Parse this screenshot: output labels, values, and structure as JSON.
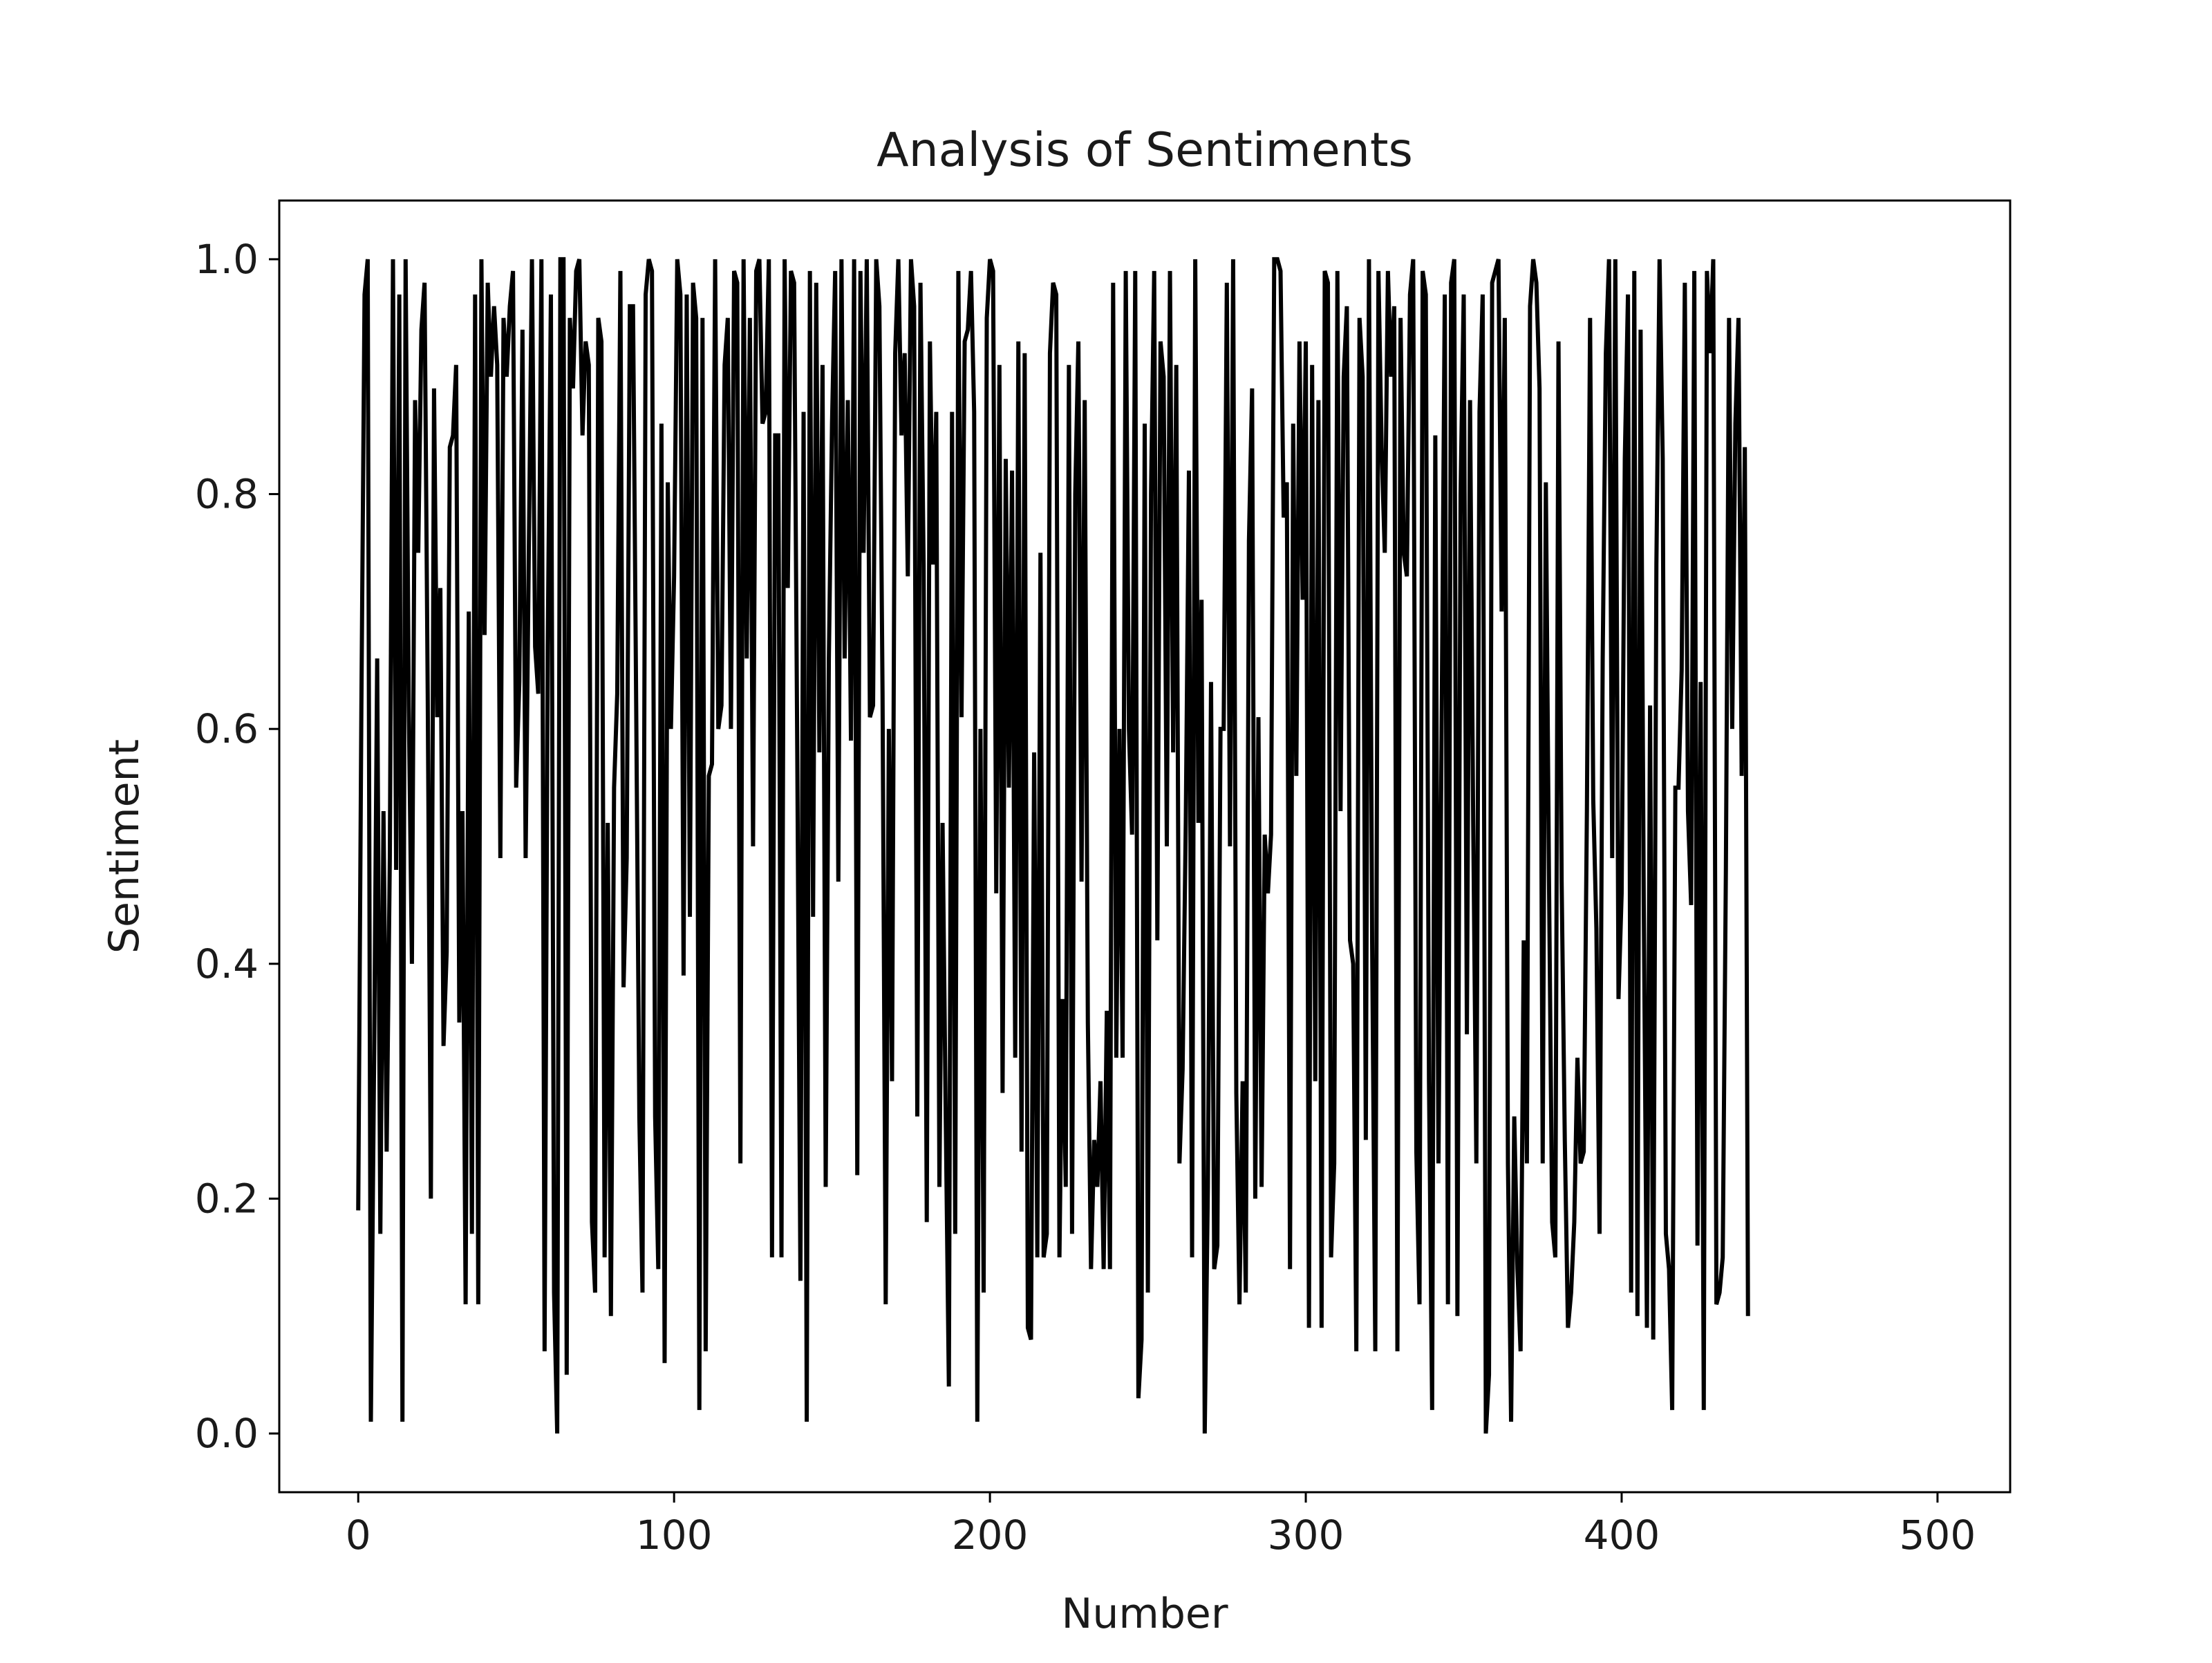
{
  "chart_data": {
    "type": "line",
    "title": "Analysis of Sentiments",
    "xlabel": "Number",
    "ylabel": "Sentiment",
    "xlim": [
      -25,
      523
    ],
    "ylim": [
      -0.05,
      1.05
    ],
    "xticks": [
      0,
      100,
      200,
      300,
      400,
      500
    ],
    "xtick_labels": [
      "0",
      "100",
      "200",
      "300",
      "400",
      "500"
    ],
    "yticks": [
      0.0,
      0.2,
      0.4,
      0.6,
      0.8,
      1.0
    ],
    "ytick_labels": [
      "0.0",
      "0.2",
      "0.4",
      "0.6",
      "0.8",
      "1.0"
    ],
    "grid": false,
    "legend": "none",
    "line_color": "#000000",
    "series": [
      {
        "x_start": 0,
        "x_step": 1,
        "values": [
          0.19,
          0.62,
          0.97,
          1.0,
          0.01,
          0.31,
          0.66,
          0.17,
          0.53,
          0.24,
          0.49,
          1.0,
          0.48,
          0.97,
          0.01,
          1.0,
          0.62,
          0.4,
          0.88,
          0.75,
          0.94,
          0.98,
          0.63,
          0.2,
          0.89,
          0.61,
          0.72,
          0.33,
          0.41,
          0.84,
          0.85,
          0.91,
          0.35,
          0.53,
          0.11,
          0.7,
          0.17,
          0.97,
          0.11,
          1.0,
          0.68,
          0.98,
          0.9,
          0.96,
          0.91,
          0.49,
          0.95,
          0.9,
          0.96,
          0.99,
          0.55,
          0.64,
          0.94,
          0.49,
          0.75,
          1.0,
          0.67,
          0.63,
          1.0,
          0.07,
          0.67,
          0.97,
          0.12,
          0.0,
          1.0,
          1.0,
          0.05,
          0.95,
          0.89,
          0.99,
          1.0,
          0.85,
          0.93,
          0.91,
          0.18,
          0.12,
          0.95,
          0.93,
          0.15,
          0.52,
          0.1,
          0.55,
          0.63,
          0.99,
          0.38,
          0.49,
          0.96,
          0.96,
          0.62,
          0.27,
          0.12,
          0.97,
          1.0,
          0.99,
          0.27,
          0.14,
          0.86,
          0.06,
          0.81,
          0.6,
          0.73,
          1.0,
          0.97,
          0.39,
          0.97,
          0.44,
          0.98,
          0.95,
          0.02,
          0.95,
          0.07,
          0.56,
          0.57,
          1.0,
          0.6,
          0.62,
          0.91,
          0.95,
          0.6,
          0.99,
          0.98,
          0.23,
          1.0,
          0.66,
          0.95,
          0.5,
          0.99,
          1.0,
          0.86,
          0.87,
          1.0,
          0.15,
          0.85,
          0.85,
          0.15,
          1.0,
          0.72,
          0.99,
          0.98,
          0.58,
          0.13,
          0.87,
          0.01,
          0.99,
          0.44,
          0.98,
          0.58,
          0.91,
          0.21,
          0.66,
          0.86,
          0.99,
          0.47,
          1.0,
          0.66,
          0.88,
          0.59,
          1.0,
          0.22,
          0.99,
          0.75,
          1.0,
          0.61,
          0.62,
          1.0,
          0.96,
          0.63,
          0.11,
          0.6,
          0.3,
          0.92,
          1.0,
          0.85,
          0.92,
          0.73,
          1.0,
          0.96,
          0.27,
          0.98,
          0.74,
          0.18,
          0.93,
          0.74,
          0.87,
          0.21,
          0.52,
          0.27,
          0.04,
          0.87,
          0.17,
          0.99,
          0.61,
          0.93,
          0.94,
          0.99,
          0.87,
          0.01,
          0.6,
          0.12,
          0.95,
          1.0,
          0.99,
          0.46,
          0.91,
          0.29,
          0.83,
          0.55,
          0.82,
          0.32,
          0.93,
          0.24,
          0.92,
          0.09,
          0.08,
          0.58,
          0.15,
          0.75,
          0.15,
          0.17,
          0.92,
          0.98,
          0.97,
          0.15,
          0.37,
          0.21,
          0.91,
          0.17,
          0.8,
          0.93,
          0.47,
          0.88,
          0.35,
          0.14,
          0.25,
          0.21,
          0.3,
          0.14,
          0.36,
          0.14,
          0.98,
          0.32,
          0.6,
          0.32,
          0.99,
          0.6,
          0.51,
          0.99,
          0.03,
          0.08,
          0.86,
          0.12,
          0.8,
          0.99,
          0.42,
          0.93,
          0.9,
          0.5,
          0.99,
          0.58,
          0.91,
          0.23,
          0.31,
          0.52,
          0.82,
          0.15,
          1.0,
          0.52,
          0.71,
          0.0,
          0.21,
          0.64,
          0.14,
          0.16,
          0.6,
          0.6,
          0.98,
          0.5,
          1.0,
          0.29,
          0.11,
          0.3,
          0.12,
          0.76,
          0.89,
          0.2,
          0.61,
          0.21,
          0.51,
          0.46,
          0.51,
          1.0,
          1.0,
          0.99,
          0.78,
          0.81,
          0.14,
          0.86,
          0.56,
          0.93,
          0.71,
          0.93,
          0.09,
          0.91,
          0.3,
          0.88,
          0.09,
          0.99,
          0.98,
          0.15,
          0.23,
          0.99,
          0.53,
          0.9,
          0.96,
          0.42,
          0.4,
          0.07,
          0.95,
          0.9,
          0.25,
          1.0,
          0.42,
          0.07,
          0.99,
          0.84,
          0.75,
          0.99,
          0.9,
          0.96,
          0.07,
          0.95,
          0.75,
          0.73,
          0.97,
          1.0,
          0.24,
          0.11,
          0.99,
          0.97,
          0.3,
          0.02,
          0.85,
          0.23,
          0.6,
          0.97,
          0.11,
          0.98,
          1.0,
          0.1,
          0.8,
          0.97,
          0.34,
          0.88,
          0.52,
          0.23,
          0.87,
          0.97,
          0.0,
          0.05,
          0.98,
          0.99,
          1.0,
          0.7,
          0.95,
          0.23,
          0.01,
          0.27,
          0.14,
          0.07,
          0.42,
          0.23,
          0.96,
          1.0,
          0.98,
          0.89,
          0.23,
          0.81,
          0.47,
          0.18,
          0.15,
          0.93,
          0.47,
          0.25,
          0.09,
          0.12,
          0.18,
          0.32,
          0.23,
          0.24,
          0.53,
          0.95,
          0.54,
          0.43,
          0.17,
          0.66,
          0.92,
          1.0,
          0.49,
          1.0,
          0.37,
          0.46,
          0.83,
          0.97,
          0.12,
          0.99,
          0.1,
          0.94,
          0.45,
          0.09,
          0.62,
          0.08,
          0.74,
          1.0,
          0.83,
          0.17,
          0.14,
          0.02,
          0.55,
          0.55,
          0.65,
          0.98,
          0.53,
          0.45,
          0.99,
          0.16,
          0.64,
          0.02,
          0.99,
          0.92,
          1.0,
          0.11,
          0.12,
          0.15,
          0.48,
          0.95,
          0.6,
          0.86,
          0.95,
          0.56,
          0.84,
          0.1
        ]
      }
    ]
  }
}
